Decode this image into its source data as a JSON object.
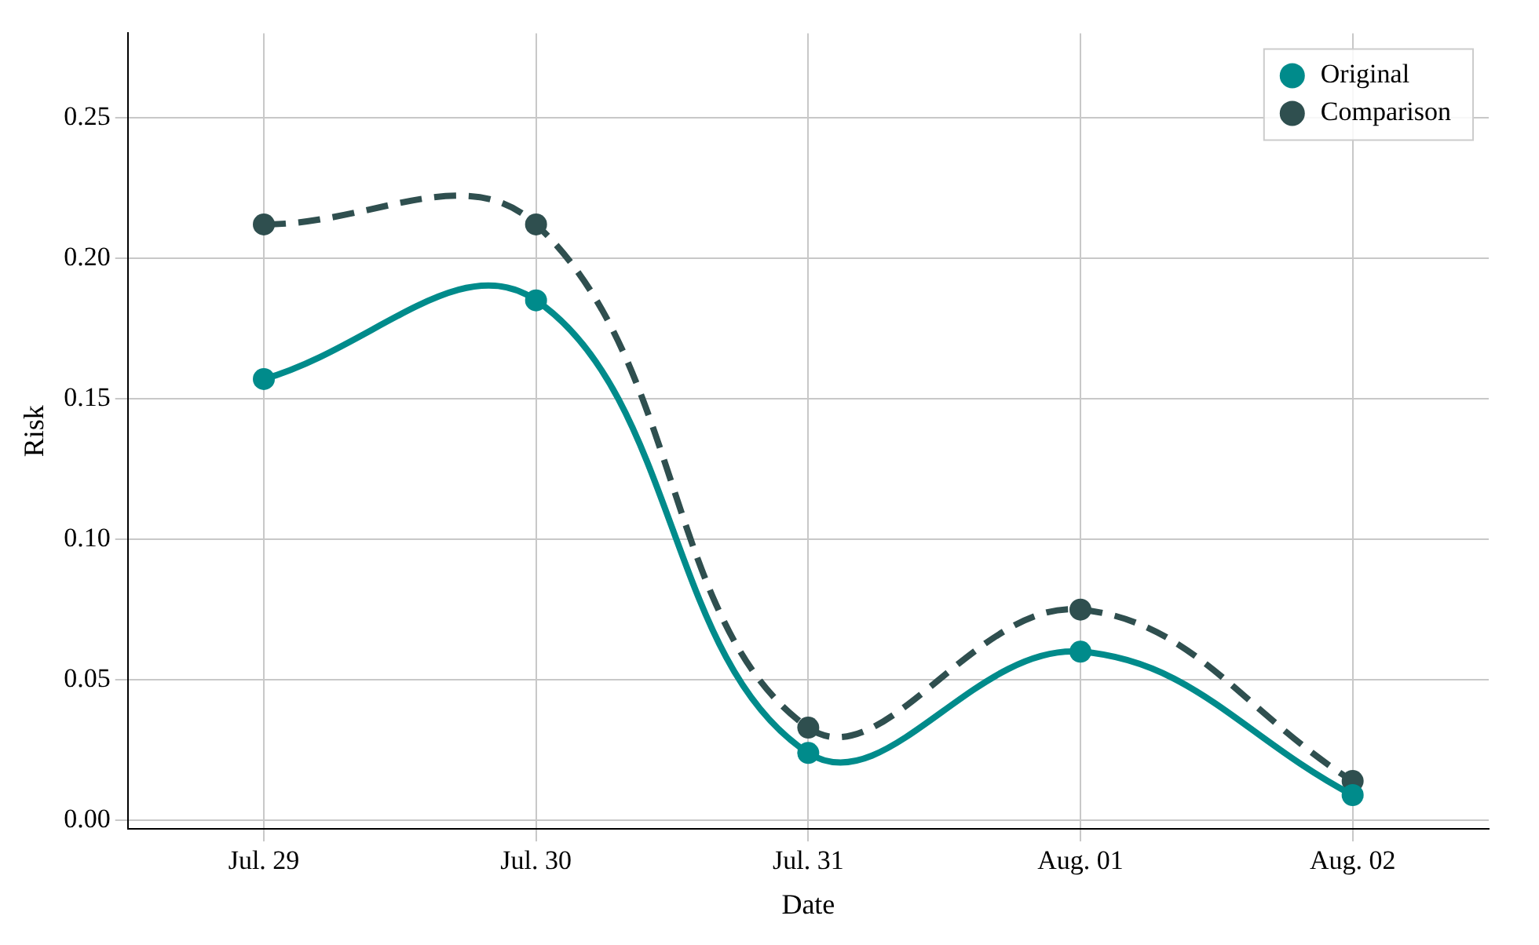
{
  "chart_data": {
    "type": "line",
    "xlabel": "Date",
    "ylabel": "Risk",
    "categories": [
      "Jul. 29",
      "Jul. 30",
      "Jul. 31",
      "Aug. 01",
      "Aug. 02"
    ],
    "series": [
      {
        "name": "Original",
        "color": "#008b8b",
        "line_style": "solid",
        "values": [
          0.157,
          0.185,
          0.024,
          0.06,
          0.009
        ]
      },
      {
        "name": "Comparison",
        "color": "#2f4f4f",
        "line_style": "dashed",
        "values": [
          0.212,
          0.212,
          0.033,
          0.075,
          0.014
        ]
      }
    ],
    "ylim": [
      -0.003,
      0.28
    ],
    "yticks": [
      {
        "value": 0,
        "label": "0.00"
      },
      {
        "value": 0.05,
        "label": "0.05"
      },
      {
        "value": 0.1,
        "label": "0.10"
      },
      {
        "value": 0.15,
        "label": "0.15"
      },
      {
        "value": 0.2,
        "label": "0.20"
      },
      {
        "value": 0.25,
        "label": "0.25"
      }
    ],
    "grid": true,
    "legend": "top right",
    "marker": "circle"
  }
}
